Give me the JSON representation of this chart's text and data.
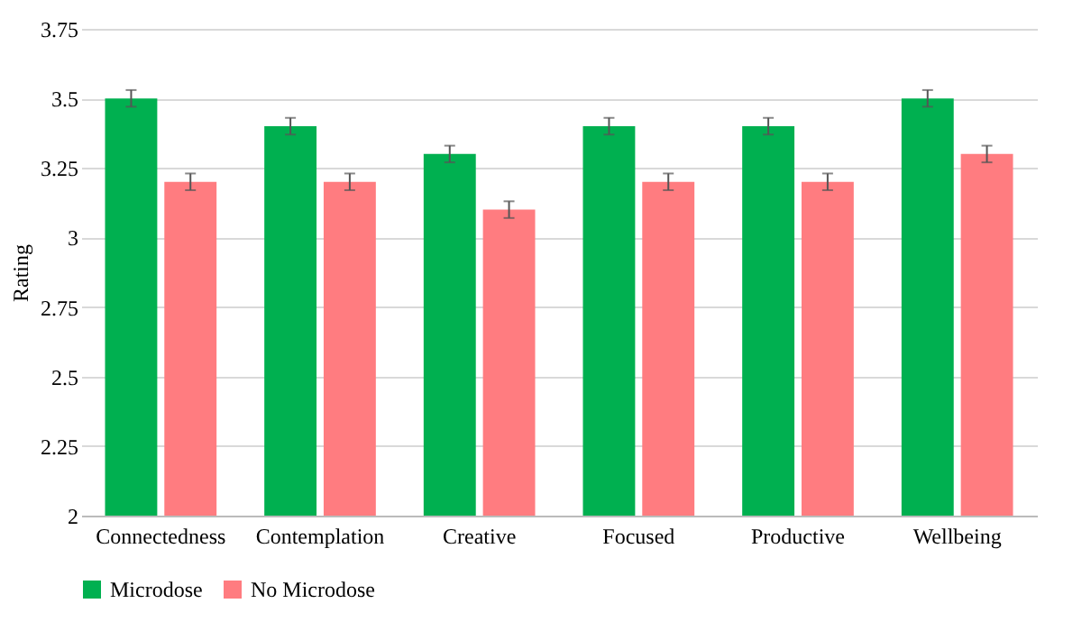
{
  "chart_data": {
    "type": "bar",
    "ylabel": "Rating",
    "categories": [
      "Connectedness",
      "Contemplation",
      "Creative",
      "Focused",
      "Productive",
      "Wellbeing"
    ],
    "series": [
      {
        "name": "Microdose",
        "color": "#00b050",
        "values": [
          3.5,
          3.4,
          3.3,
          3.4,
          3.4,
          3.5
        ],
        "errors": [
          0.03,
          0.03,
          0.03,
          0.03,
          0.03,
          0.03
        ]
      },
      {
        "name": "No Microdose",
        "color": "#ff7c80",
        "values": [
          3.2,
          3.2,
          3.1,
          3.2,
          3.2,
          3.3
        ],
        "errors": [
          0.03,
          0.03,
          0.03,
          0.03,
          0.03,
          0.03
        ]
      }
    ],
    "ylim": [
      2,
      3.75
    ],
    "yticks": [
      2,
      2.25,
      2.5,
      2.75,
      3,
      3.25,
      3.5,
      3.75
    ],
    "grid": "y",
    "legend": "bottom"
  }
}
